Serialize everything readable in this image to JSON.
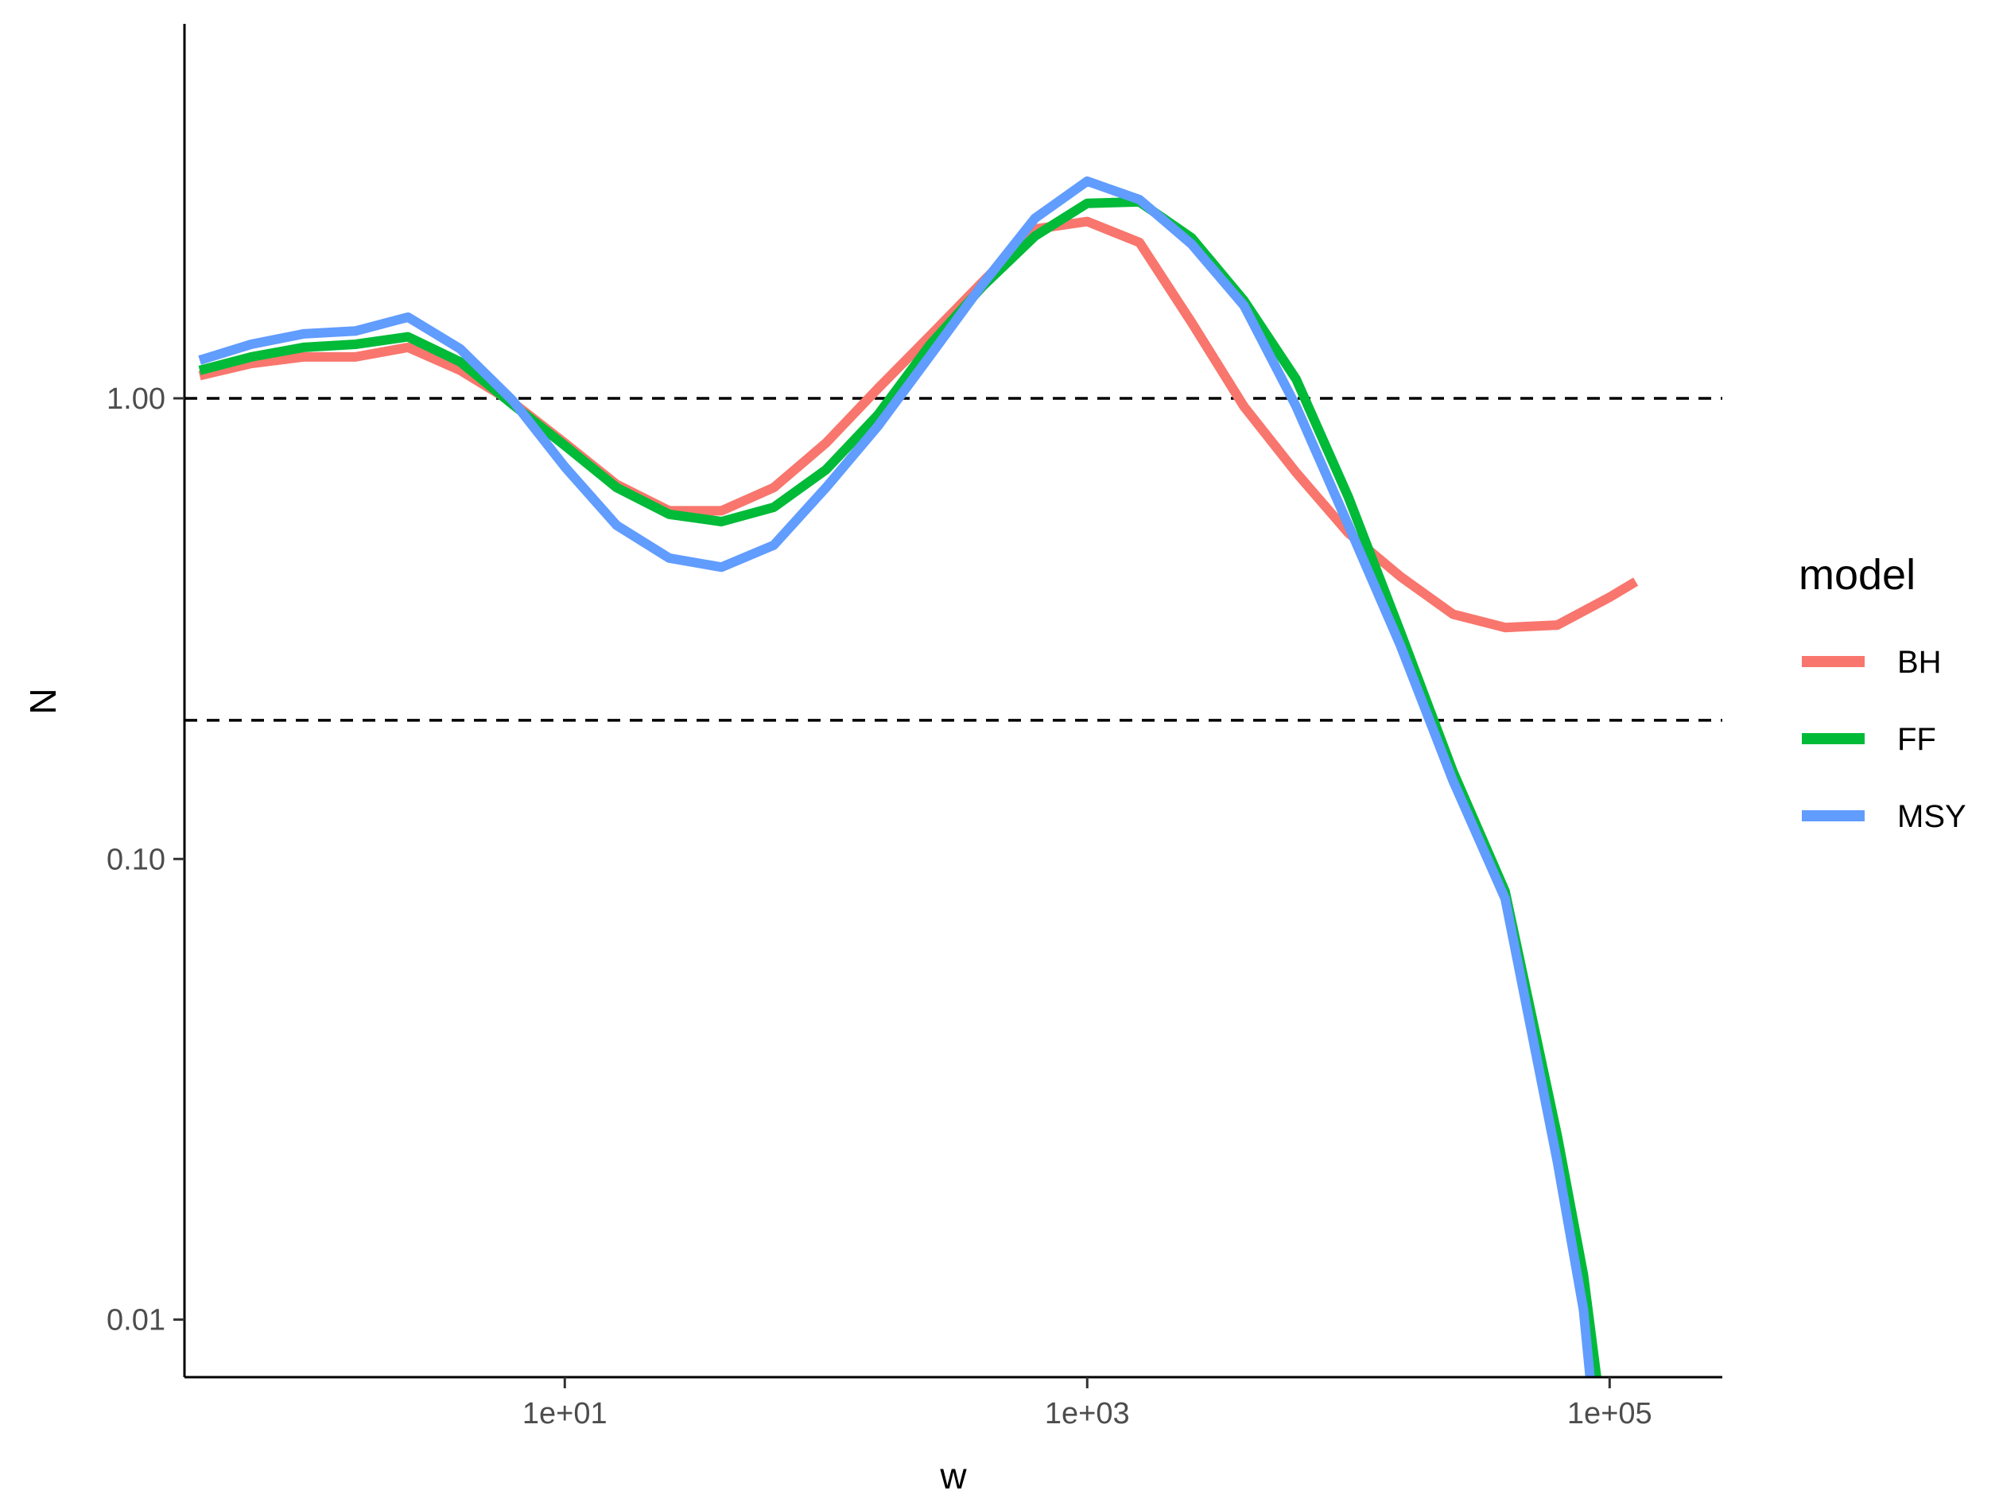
{
  "chart_data": {
    "type": "line",
    "title": "",
    "xlabel": "w",
    "ylabel": "N",
    "x_scale": "log10",
    "y_scale": "log10",
    "xlim": [
      0.35,
      270000
    ],
    "ylim": [
      0.0075,
      6.5
    ],
    "x_ticks": [
      {
        "value": 10,
        "label": "1e+01"
      },
      {
        "value": 1000,
        "label": "1e+03"
      },
      {
        "value": 100000,
        "label": "1e+05"
      }
    ],
    "y_ticks": [
      {
        "value": 1,
        "label": "1.00"
      },
      {
        "value": 0.1,
        "label": "0.10"
      },
      {
        "value": 0.01,
        "label": "0.01"
      }
    ],
    "hlines": [
      1,
      0.2
    ],
    "grid": false,
    "legend": {
      "title": "model",
      "position": "right"
    },
    "series": [
      {
        "name": "BH",
        "color": "#F8766D",
        "points": [
          [
            0.4,
            1.12
          ],
          [
            0.63,
            1.19
          ],
          [
            1.0,
            1.23
          ],
          [
            1.58,
            1.23
          ],
          [
            2.51,
            1.29
          ],
          [
            3.98,
            1.15
          ],
          [
            6.31,
            0.98
          ],
          [
            10.0,
            0.8
          ],
          [
            15.8,
            0.65
          ],
          [
            25.1,
            0.57
          ],
          [
            39.8,
            0.57
          ],
          [
            63.1,
            0.64
          ],
          [
            100,
            0.8
          ],
          [
            158,
            1.05
          ],
          [
            251,
            1.37
          ],
          [
            398,
            1.79
          ],
          [
            631,
            2.33
          ],
          [
            1000,
            2.42
          ],
          [
            1585,
            2.18
          ],
          [
            2512,
            1.46
          ],
          [
            3981,
            0.96
          ],
          [
            6310,
            0.69
          ],
          [
            10000,
            0.51
          ],
          [
            15849,
            0.41
          ],
          [
            25119,
            0.34
          ],
          [
            39811,
            0.318
          ],
          [
            63096,
            0.322
          ],
          [
            100000,
            0.37
          ],
          [
            125893,
            0.4
          ]
        ]
      },
      {
        "name": "FF",
        "color": "#00BA38",
        "points": [
          [
            0.4,
            1.15
          ],
          [
            0.63,
            1.23
          ],
          [
            1.0,
            1.29
          ],
          [
            1.58,
            1.31
          ],
          [
            2.51,
            1.36
          ],
          [
            3.98,
            1.2
          ],
          [
            6.31,
            0.97
          ],
          [
            10.0,
            0.79
          ],
          [
            15.8,
            0.64
          ],
          [
            25.1,
            0.56
          ],
          [
            39.8,
            0.54
          ],
          [
            63.1,
            0.58
          ],
          [
            100,
            0.7
          ],
          [
            158,
            0.92
          ],
          [
            251,
            1.31
          ],
          [
            398,
            1.75
          ],
          [
            631,
            2.25
          ],
          [
            1000,
            2.65
          ],
          [
            1585,
            2.67
          ],
          [
            2512,
            2.23
          ],
          [
            3981,
            1.63
          ],
          [
            6310,
            1.1
          ],
          [
            10000,
            0.61
          ],
          [
            15849,
            0.31
          ],
          [
            25119,
            0.155
          ],
          [
            39811,
            0.085
          ],
          [
            63096,
            0.025
          ],
          [
            79433,
            0.0125
          ],
          [
            89125,
            0.0075
          ]
        ]
      },
      {
        "name": "MSY",
        "color": "#619CFF",
        "points": [
          [
            0.4,
            1.21
          ],
          [
            0.63,
            1.31
          ],
          [
            1.0,
            1.38
          ],
          [
            1.58,
            1.4
          ],
          [
            2.51,
            1.5
          ],
          [
            3.98,
            1.28
          ],
          [
            6.31,
            0.99
          ],
          [
            10.0,
            0.71
          ],
          [
            15.8,
            0.53
          ],
          [
            25.1,
            0.45
          ],
          [
            39.8,
            0.43
          ],
          [
            63.1,
            0.48
          ],
          [
            100,
            0.64
          ],
          [
            158,
            0.87
          ],
          [
            251,
            1.24
          ],
          [
            398,
            1.77
          ],
          [
            631,
            2.46
          ],
          [
            1000,
            2.96
          ],
          [
            1585,
            2.7
          ],
          [
            2512,
            2.16
          ],
          [
            3981,
            1.59
          ],
          [
            6310,
            0.96
          ],
          [
            10000,
            0.53
          ],
          [
            15849,
            0.29
          ],
          [
            25119,
            0.148
          ],
          [
            39811,
            0.082
          ],
          [
            63096,
            0.022
          ],
          [
            79433,
            0.0105
          ],
          [
            84140,
            0.0075
          ]
        ]
      }
    ]
  }
}
